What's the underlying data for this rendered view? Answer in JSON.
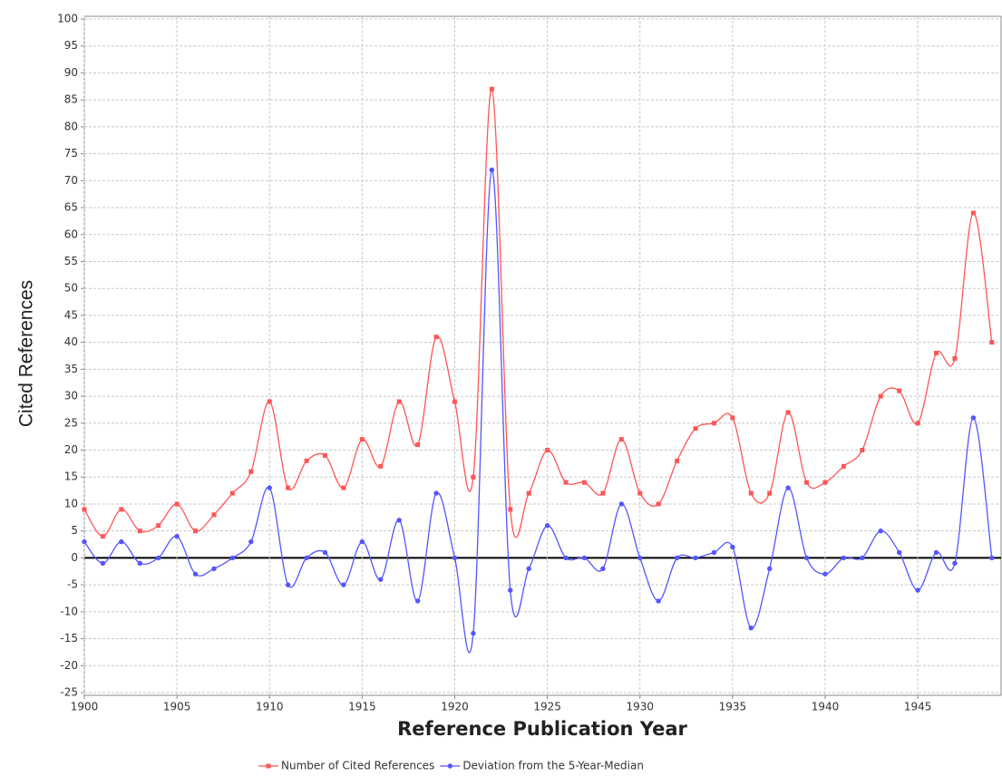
{
  "chart_data": {
    "type": "line",
    "x_label": "Reference Publication Year",
    "y_label": "Cited References",
    "x": [
      1900,
      1901,
      1902,
      1903,
      1904,
      1905,
      1906,
      1907,
      1908,
      1909,
      1910,
      1911,
      1912,
      1913,
      1914,
      1915,
      1916,
      1917,
      1918,
      1919,
      1920,
      1921,
      1922,
      1923,
      1924,
      1925,
      1926,
      1927,
      1928,
      1929,
      1930,
      1931,
      1932,
      1933,
      1934,
      1935,
      1936,
      1937,
      1938,
      1939,
      1940,
      1941,
      1942,
      1943,
      1944,
      1945,
      1946,
      1947,
      1948,
      1949
    ],
    "series": [
      {
        "name": "Number of Cited References",
        "color": "#ff5555",
        "marker": "square",
        "values": [
          9,
          4,
          9,
          5,
          6,
          10,
          5,
          8,
          12,
          16,
          29,
          13,
          18,
          19,
          13,
          22,
          17,
          29,
          21,
          41,
          29,
          15,
          87,
          9,
          12,
          20,
          14,
          14,
          12,
          22,
          12,
          10,
          18,
          24,
          25,
          26,
          12,
          12,
          27,
          14,
          14,
          17,
          20,
          30,
          31,
          25,
          38,
          37,
          64,
          40
        ]
      },
      {
        "name": "Deviation from the 5-Year-Median",
        "color": "#5555ff",
        "marker": "circle",
        "values": [
          3,
          -1,
          3,
          -1,
          0,
          4,
          -3,
          -2,
          0,
          3,
          13,
          -5,
          0,
          1,
          -5,
          3,
          -4,
          7,
          -8,
          12,
          0,
          -14,
          72,
          -6,
          -2,
          6,
          0,
          0,
          -2,
          10,
          0,
          -8,
          0,
          0,
          1,
          2,
          -13,
          -2,
          13,
          0,
          -3,
          0,
          0,
          5,
          1,
          -6,
          1,
          -1,
          26,
          0
        ]
      }
    ],
    "xlim": [
      1900,
      1949.5
    ],
    "xticks": [
      1900,
      1905,
      1910,
      1915,
      1920,
      1925,
      1930,
      1935,
      1940,
      1945
    ],
    "ylim": [
      -25,
      100
    ],
    "yticks": [
      -25,
      -20,
      -15,
      -10,
      -5,
      0,
      5,
      10,
      15,
      20,
      25,
      30,
      35,
      40,
      45,
      50,
      55,
      60,
      65,
      70,
      75,
      80,
      85,
      90,
      95,
      100
    ],
    "grid": true,
    "legend": "bottom"
  }
}
